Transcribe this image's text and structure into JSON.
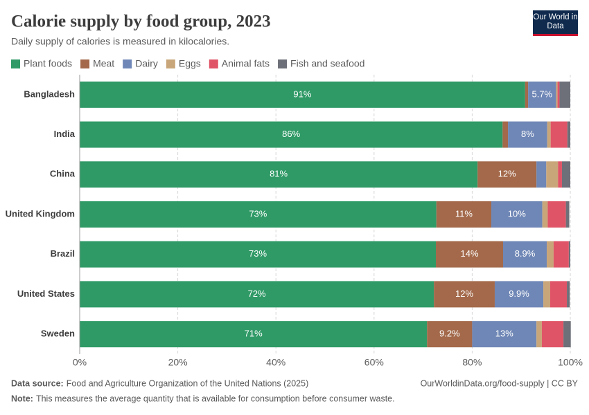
{
  "chart_data": {
    "type": "stacked-bar",
    "title": "Calorie supply by food group, 2023",
    "subtitle": "Daily supply of calories is measured in kilocalories.",
    "logo": "Our World in Data",
    "categories": [
      "Bangladesh",
      "India",
      "China",
      "United Kingdom",
      "Brazil",
      "United States",
      "Sweden"
    ],
    "series": [
      {
        "name": "Plant foods",
        "color": "#2f9a66",
        "values": [
          90.8,
          86.2,
          81.1,
          72.7,
          72.6,
          72.2,
          70.8
        ],
        "value_labels": [
          "91%",
          "86%",
          "81%",
          "73%",
          "73%",
          "72%",
          "71%"
        ]
      },
      {
        "name": "Meat",
        "color": "#a3694a",
        "values": [
          0.6,
          1.1,
          12.0,
          11.2,
          13.7,
          12.4,
          9.2
        ],
        "value_labels": [
          null,
          null,
          "12%",
          "11%",
          "14%",
          "12%",
          "9.2%"
        ]
      },
      {
        "name": "Dairy",
        "color": "#6f87b6",
        "values": [
          5.7,
          8.0,
          2.0,
          10.4,
          8.9,
          9.9,
          13.1
        ],
        "value_labels": [
          "5.7%",
          "8%",
          null,
          "10%",
          "8.9%",
          "9.9%",
          "13%"
        ]
      },
      {
        "name": "Eggs",
        "color": "#c9a67a",
        "values": [
          0.3,
          0.7,
          2.4,
          1.1,
          1.4,
          1.4,
          1.1
        ],
        "value_labels": [
          null,
          null,
          null,
          null,
          null,
          null,
          null
        ]
      },
      {
        "name": "Animal fats",
        "color": "#e05467",
        "values": [
          0.4,
          3.4,
          0.8,
          3.7,
          3.1,
          3.4,
          4.4
        ],
        "value_labels": [
          null,
          null,
          null,
          null,
          null,
          null,
          null
        ]
      },
      {
        "name": "Fish and seafood",
        "color": "#6e7079",
        "values": [
          2.2,
          0.6,
          1.7,
          0.7,
          0.3,
          0.6,
          1.5
        ],
        "value_labels": [
          null,
          null,
          null,
          null,
          null,
          null,
          null
        ]
      }
    ],
    "xlim": [
      0,
      100
    ],
    "xticks": [
      {
        "value": 0,
        "label": "0%"
      },
      {
        "value": 20,
        "label": "20%"
      },
      {
        "value": 40,
        "label": "40%"
      },
      {
        "value": 60,
        "label": "60%"
      },
      {
        "value": 80,
        "label": "80%"
      },
      {
        "value": 100,
        "label": "100%"
      }
    ],
    "grid": true,
    "source_label": "Data source:",
    "source": "Food and Agriculture Organization of the United Nations (2025)",
    "url": "OurWorldinData.org/food-supply | CC BY",
    "note_label": "Note:",
    "note": "This measures the average quantity that is available for consumption before consumer waste."
  }
}
